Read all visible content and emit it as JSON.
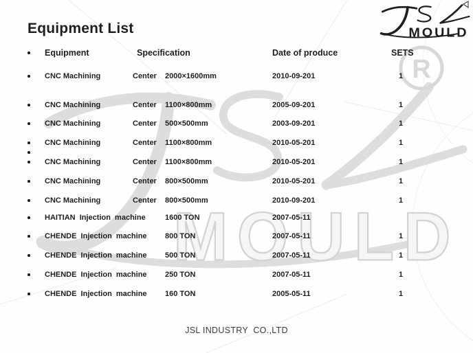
{
  "page": {
    "title": "Equipment List"
  },
  "logo": {
    "script": "JSL",
    "word": "MOULD"
  },
  "watermark": {
    "script": "JSL",
    "word": "MOULD",
    "registered": "R"
  },
  "table": {
    "headers": {
      "equipment": "Equipment",
      "specification": "Specification",
      "date": "Date of produce",
      "sets": "SETS"
    },
    "rows": [
      {
        "equipment": "CNC Machining",
        "spec_label": "Center",
        "spec_value": "2000×1600mm",
        "date": "2010-09-201",
        "sets": "1"
      },
      {
        "equipment": "CNC Machining",
        "spec_label": "Center",
        "spec_value": "1100×800mm",
        "date": "2005-09-201",
        "sets": "1"
      },
      {
        "equipment": "CNC Machining",
        "spec_label": "Center",
        "spec_value": "500×500mm",
        "date": "2003-09-201",
        "sets": "1"
      },
      {
        "equipment": "CNC Machining",
        "spec_label": "Center",
        "spec_value": "1100×800mm",
        "date": "2010-05-201",
        "sets": "1"
      },
      {
        "equipment": "CNC Machining",
        "spec_label": "Center",
        "spec_value": "1100×800mm",
        "date": "2010-05-201",
        "sets": "1"
      },
      {
        "equipment": "CNC Machining",
        "spec_label": "Center",
        "spec_value": "800×500mm",
        "date": "2010-05-201",
        "sets": "1"
      },
      {
        "equipment": "CNC Machining",
        "spec_label": "Center",
        "spec_value": "800×500mm",
        "date": "2010-09-201",
        "sets": "1"
      },
      {
        "equipment": "HAITIAN  Injection  machine",
        "spec_label": "",
        "spec_value": "1600 TON",
        "date": "2007-05-11",
        "sets": ""
      },
      {
        "equipment": "CHENDE  Injection  machine",
        "spec_label": "",
        "spec_value": "800 TON",
        "date": "2007-05-11",
        "sets": "1"
      },
      {
        "equipment": "CHENDE  Injection  machine",
        "spec_label": "",
        "spec_value": "500 TON",
        "date": "2007-05-11",
        "sets": "1"
      },
      {
        "equipment": "CHENDE  Injection  machine",
        "spec_label": "",
        "spec_value": "250 TON",
        "date": "2007-05-11",
        "sets": "1"
      },
      {
        "equipment": "CHENDE  Injection  machine",
        "spec_label": "",
        "spec_value": "160 TON",
        "date": "2005-05-11",
        "sets": "1"
      }
    ]
  },
  "footer": {
    "company": "JSL INDUSTRY  CO.,LTD"
  },
  "colors": {
    "text": "#1e1e1e",
    "watermark": "#d6d6d6",
    "footer": "#3c3c3c"
  }
}
